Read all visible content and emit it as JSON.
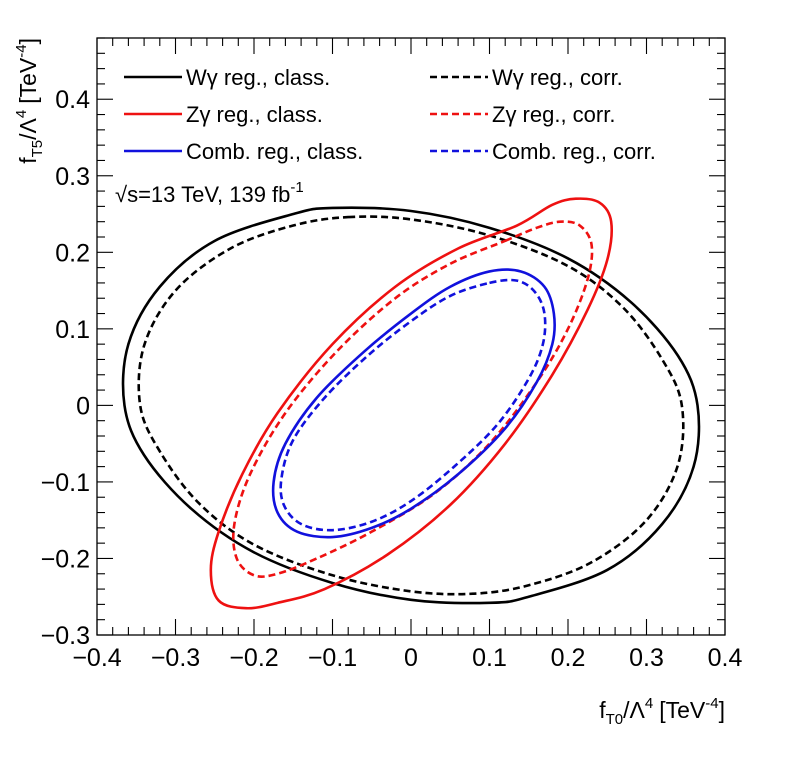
{
  "chart_data": {
    "type": "line",
    "subtype": "contour",
    "xlabel": {
      "main": "f",
      "sub": "T0",
      "rest": "/Λ",
      "sup": "4",
      "unit": "[TeV",
      "unit_sup": "-4",
      "unit_close": "]"
    },
    "ylabel": {
      "main": "f",
      "sub": "T5",
      "rest": "/Λ",
      "sup": "4",
      "unit": "[TeV",
      "unit_sup": "-4",
      "unit_close": "]"
    },
    "xlim": [
      -0.4,
      0.4
    ],
    "ylim": [
      -0.3,
      0.48
    ],
    "x_ticks": [
      -0.4,
      -0.3,
      -0.2,
      -0.1,
      0,
      0.1,
      0.2,
      0.3,
      0.4
    ],
    "x_tick_labels": [
      "−0.4",
      "−0.3",
      "−0.2",
      "−0.1",
      "0",
      "0.1",
      "0.2",
      "0.3",
      "0.4"
    ],
    "y_ticks": [
      -0.3,
      -0.2,
      -0.1,
      0,
      0.1,
      0.2,
      0.3,
      0.4
    ],
    "y_tick_labels": [
      "−0.3",
      "−0.2",
      "−0.1",
      "0",
      "0.1",
      "0.2",
      "0.3",
      "0.4"
    ],
    "annotation": {
      "sqrt": "√",
      "s_text": "s=13 TeV, 139 fb",
      "sup": "-1"
    },
    "legend_location": "top",
    "series": [
      {
        "name": "Wγ reg., class.",
        "color": "#000000",
        "dashed": false,
        "points": [
          [
            -0.1,
            0.258
          ],
          [
            0.0,
            0.254
          ],
          [
            0.1,
            0.232
          ],
          [
            0.2,
            0.192
          ],
          [
            0.28,
            0.135
          ],
          [
            0.34,
            0.065
          ],
          [
            0.365,
            0.0
          ],
          [
            0.36,
            -0.08
          ],
          [
            0.32,
            -0.155
          ],
          [
            0.25,
            -0.215
          ],
          [
            0.15,
            -0.25
          ],
          [
            0.1,
            -0.258
          ],
          [
            0.0,
            -0.254
          ],
          [
            -0.1,
            -0.232
          ],
          [
            -0.2,
            -0.192
          ],
          [
            -0.28,
            -0.135
          ],
          [
            -0.34,
            -0.065
          ],
          [
            -0.365,
            0.0
          ],
          [
            -0.36,
            0.08
          ],
          [
            -0.32,
            0.155
          ],
          [
            -0.25,
            0.215
          ],
          [
            -0.15,
            0.25
          ]
        ]
      },
      {
        "name": "Wγ reg., corr.",
        "color": "#000000",
        "dashed": true,
        "points": [
          [
            -0.08,
            0.246
          ],
          [
            0.0,
            0.243
          ],
          [
            0.1,
            0.222
          ],
          [
            0.2,
            0.182
          ],
          [
            0.27,
            0.128
          ],
          [
            0.32,
            0.06
          ],
          [
            0.345,
            0.0
          ],
          [
            0.34,
            -0.078
          ],
          [
            0.3,
            -0.15
          ],
          [
            0.23,
            -0.205
          ],
          [
            0.15,
            -0.235
          ],
          [
            0.08,
            -0.246
          ],
          [
            0.0,
            -0.243
          ],
          [
            -0.1,
            -0.222
          ],
          [
            -0.2,
            -0.182
          ],
          [
            -0.27,
            -0.128
          ],
          [
            -0.32,
            -0.06
          ],
          [
            -0.345,
            0.0
          ],
          [
            -0.34,
            0.078
          ],
          [
            -0.3,
            0.15
          ],
          [
            -0.23,
            0.205
          ],
          [
            -0.15,
            0.235
          ]
        ]
      },
      {
        "name": "Zγ reg., class.",
        "color": "#ee1111",
        "dashed": false,
        "points": [
          [
            0.135,
            0.235
          ],
          [
            0.18,
            0.262
          ],
          [
            0.21,
            0.27
          ],
          [
            0.24,
            0.265
          ],
          [
            0.255,
            0.24
          ],
          [
            0.25,
            0.19
          ],
          [
            0.225,
            0.125
          ],
          [
            0.18,
            0.04
          ],
          [
            0.12,
            -0.05
          ],
          [
            0.05,
            -0.13
          ],
          [
            -0.03,
            -0.195
          ],
          [
            -0.11,
            -0.24
          ],
          [
            -0.17,
            -0.258
          ],
          [
            -0.21,
            -0.265
          ],
          [
            -0.245,
            -0.255
          ],
          [
            -0.255,
            -0.215
          ],
          [
            -0.245,
            -0.165
          ],
          [
            -0.215,
            -0.09
          ],
          [
            -0.17,
            -0.01
          ],
          [
            -0.1,
            0.08
          ],
          [
            -0.02,
            0.155
          ],
          [
            0.06,
            0.205
          ]
        ]
      },
      {
        "name": "Zγ reg., corr.",
        "color": "#ee1111",
        "dashed": true,
        "points": [
          [
            0.12,
            0.215
          ],
          [
            0.16,
            0.232
          ],
          [
            0.19,
            0.24
          ],
          [
            0.215,
            0.235
          ],
          [
            0.23,
            0.21
          ],
          [
            0.225,
            0.165
          ],
          [
            0.2,
            0.1
          ],
          [
            0.16,
            0.03
          ],
          [
            0.1,
            -0.05
          ],
          [
            0.03,
            -0.115
          ],
          [
            -0.05,
            -0.165
          ],
          [
            -0.12,
            -0.2
          ],
          [
            -0.17,
            -0.22
          ],
          [
            -0.2,
            -0.222
          ],
          [
            -0.222,
            -0.2
          ],
          [
            -0.225,
            -0.155
          ],
          [
            -0.205,
            -0.09
          ],
          [
            -0.16,
            -0.01
          ],
          [
            -0.095,
            0.07
          ],
          [
            -0.02,
            0.14
          ],
          [
            0.05,
            0.185
          ]
        ]
      },
      {
        "name": "Comb. reg., class.",
        "color": "#1111dd",
        "dashed": false,
        "points": [
          [
            0.1,
            0.175
          ],
          [
            0.14,
            0.175
          ],
          [
            0.17,
            0.155
          ],
          [
            0.182,
            0.12
          ],
          [
            0.18,
            0.08
          ],
          [
            0.16,
            0.03
          ],
          [
            0.12,
            -0.03
          ],
          [
            0.06,
            -0.09
          ],
          [
            0.0,
            -0.135
          ],
          [
            -0.05,
            -0.16
          ],
          [
            -0.1,
            -0.172
          ],
          [
            -0.145,
            -0.165
          ],
          [
            -0.17,
            -0.14
          ],
          [
            -0.175,
            -0.1
          ],
          [
            -0.16,
            -0.05
          ],
          [
            -0.12,
            0.01
          ],
          [
            -0.06,
            0.07
          ],
          [
            0.0,
            0.12
          ],
          [
            0.05,
            0.155
          ]
        ]
      },
      {
        "name": "Comb. reg., corr.",
        "color": "#1111dd",
        "dashed": true,
        "points": [
          [
            0.1,
            0.16
          ],
          [
            0.135,
            0.163
          ],
          [
            0.158,
            0.148
          ],
          [
            0.17,
            0.12
          ],
          [
            0.168,
            0.08
          ],
          [
            0.15,
            0.035
          ],
          [
            0.11,
            -0.025
          ],
          [
            0.055,
            -0.08
          ],
          [
            0.0,
            -0.125
          ],
          [
            -0.05,
            -0.152
          ],
          [
            -0.1,
            -0.163
          ],
          [
            -0.14,
            -0.155
          ],
          [
            -0.162,
            -0.13
          ],
          [
            -0.165,
            -0.095
          ],
          [
            -0.15,
            -0.045
          ],
          [
            -0.11,
            0.01
          ],
          [
            -0.055,
            0.065
          ],
          [
            0.0,
            0.11
          ],
          [
            0.05,
            0.143
          ]
        ]
      }
    ]
  }
}
